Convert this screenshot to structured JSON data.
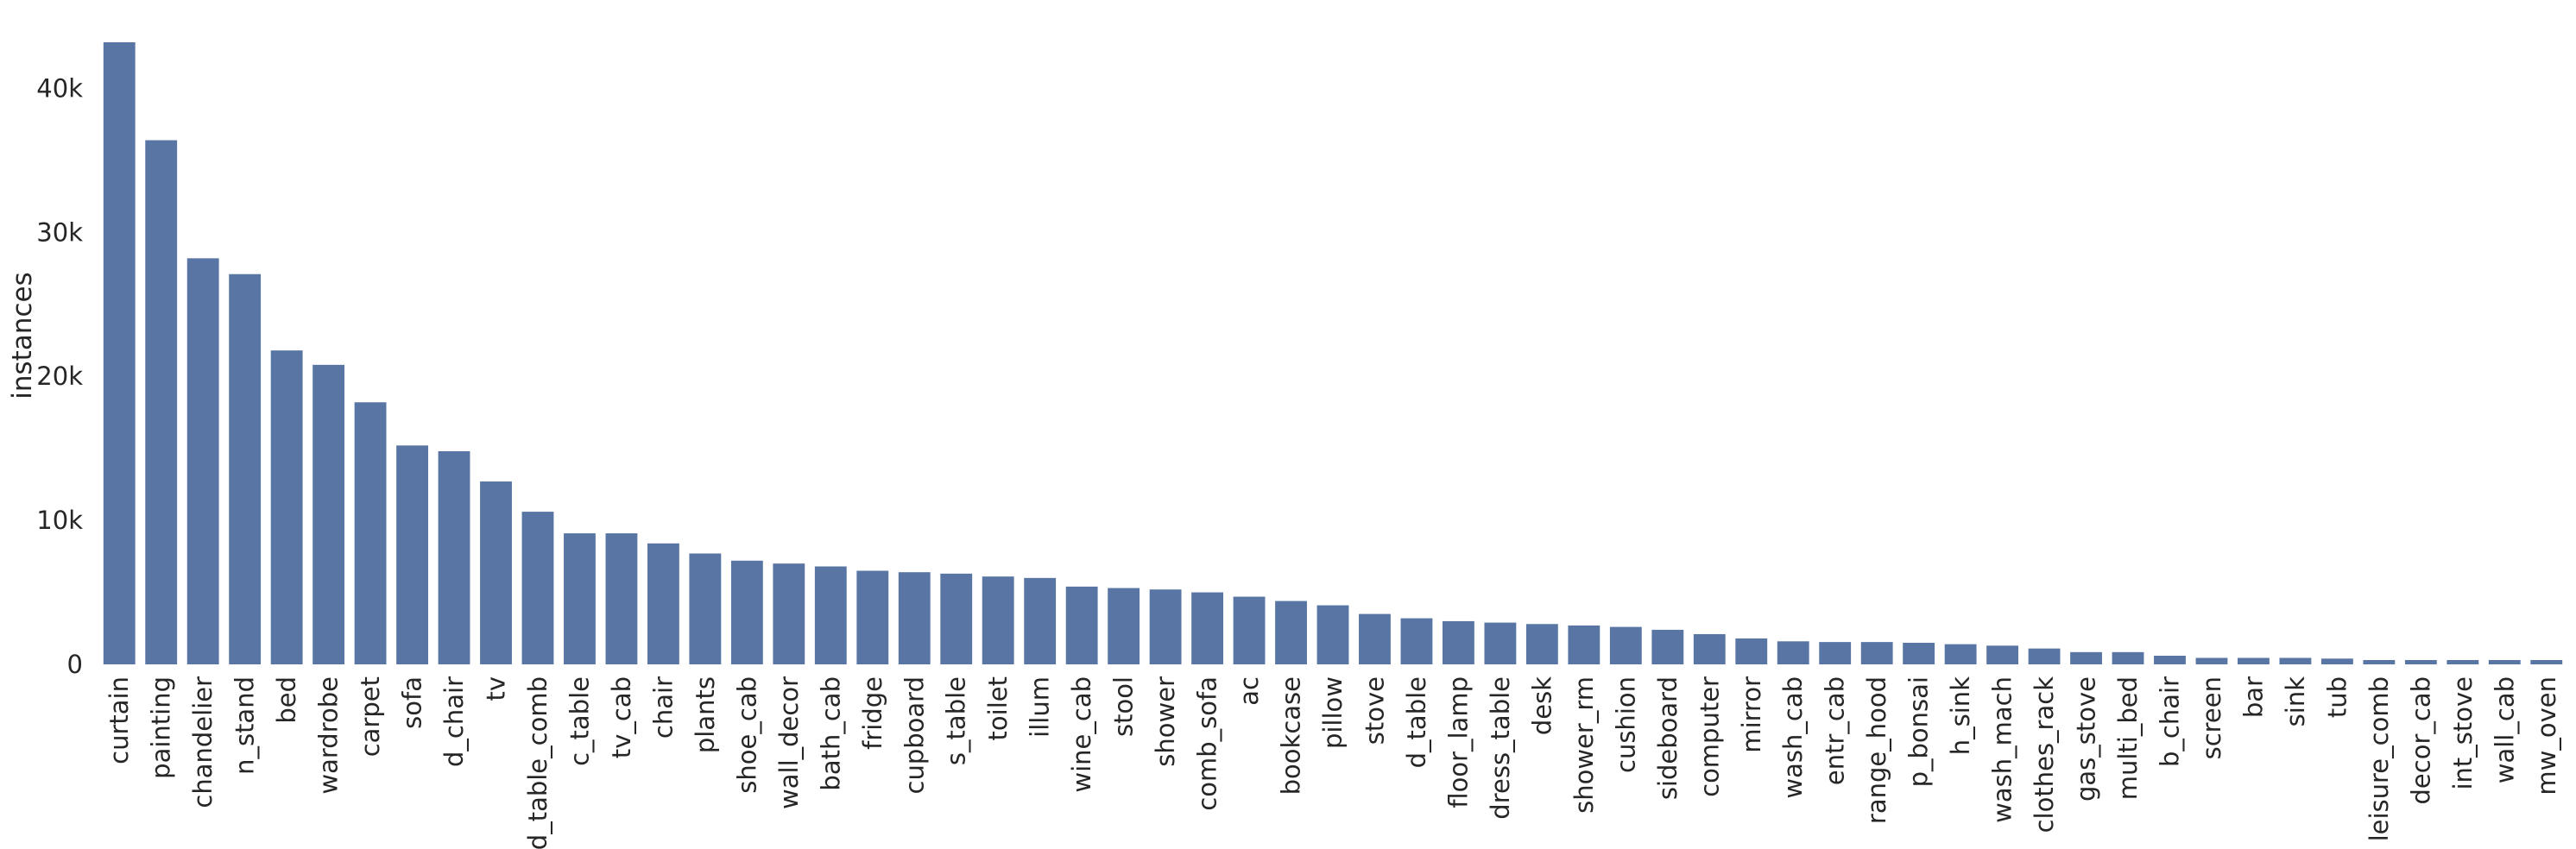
{
  "chart_data": {
    "type": "bar",
    "title": "",
    "xlabel": "",
    "ylabel": "instances",
    "ylim": [
      0,
      43500
    ],
    "yticks": [
      {
        "value": 0,
        "label": "0"
      },
      {
        "value": 10000,
        "label": "10k"
      },
      {
        "value": 20000,
        "label": "20k"
      },
      {
        "value": 30000,
        "label": "30k"
      },
      {
        "value": 40000,
        "label": "40k"
      }
    ],
    "grid": false,
    "bar_color": "#5875a4",
    "categories": [
      "curtain",
      "painting",
      "chandelier",
      "n_stand",
      "bed",
      "wardrobe",
      "carpet",
      "sofa",
      "d_chair",
      "tv",
      "d_table_comb",
      "c_table",
      "tv_cab",
      "chair",
      "plants",
      "shoe_cab",
      "wall_decor",
      "bath_cab",
      "fridge",
      "cupboard",
      "s_table",
      "toilet",
      "illum",
      "wine_cab",
      "stool",
      "shower",
      "comb_sofa",
      "ac",
      "bookcase",
      "pillow",
      "stove",
      "d_table",
      "floor_lamp",
      "dress_table",
      "desk",
      "shower_rm",
      "cushion",
      "sideboard",
      "computer",
      "mirror",
      "wash_cab",
      "entr_cab",
      "range_hood",
      "p_bonsai",
      "h_sink",
      "wash_mach",
      "clothes_rack",
      "gas_stove",
      "multi_bed",
      "b_chair",
      "screen",
      "bar",
      "sink",
      "tub",
      "leisure_comb",
      "decor_cab",
      "int_stove",
      "wall_cab",
      "mw_oven"
    ],
    "values": [
      43200,
      36400,
      28200,
      27100,
      21800,
      20800,
      18200,
      15200,
      14800,
      12700,
      10600,
      9100,
      9100,
      8400,
      7700,
      7200,
      7000,
      6800,
      6500,
      6400,
      6300,
      6100,
      6000,
      5400,
      5300,
      5200,
      5000,
      4700,
      4400,
      4100,
      3500,
      3200,
      3000,
      2900,
      2800,
      2700,
      2600,
      2400,
      2100,
      1800,
      1600,
      1550,
      1550,
      1500,
      1400,
      1300,
      1100,
      850,
      850,
      600,
      450,
      450,
      450,
      400,
      300,
      300,
      300,
      300,
      300
    ]
  }
}
